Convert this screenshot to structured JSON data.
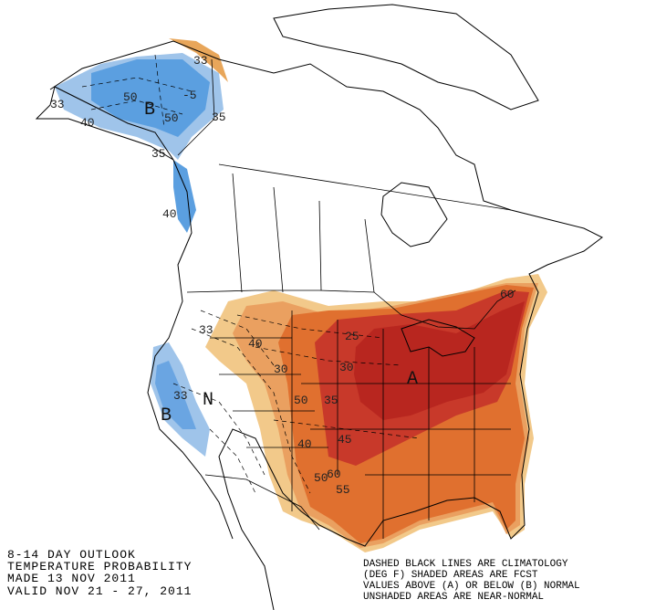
{
  "info": [
    "8-14 DAY OUTLOOK",
    "TEMPERATURE PROBABILITY",
    "MADE  13 NOV 2011",
    "VALID  NOV 21 - 27, 2011"
  ],
  "legend": [
    "DASHED BLACK LINES ARE CLIMATOLOGY",
    "(DEG F) SHADED AREAS ARE FCST",
    "VALUES ABOVE (A) OR BELOW (B) NORMAL",
    "UNSHADED AREAS ARE NEAR-NORMAL"
  ],
  "labels": [
    "33",
    "50",
    "B",
    "50",
    "-5",
    "33",
    "40",
    "35",
    "35",
    "40",
    "33",
    "N",
    "33",
    "B",
    "40",
    "30",
    "50",
    "35",
    "30",
    "A",
    "45",
    "40",
    "50",
    "60",
    "55",
    "25",
    "60"
  ]
}
